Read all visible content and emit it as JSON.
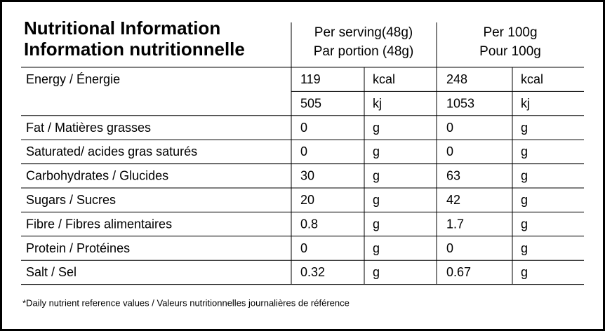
{
  "header": {
    "title": [
      "Nutritional Information",
      "Information nutritionnelle"
    ],
    "per_serving": [
      "Per serving(48g)",
      "Par portion (48g)"
    ],
    "per_100g": [
      "Per 100g",
      "Pour 100g"
    ]
  },
  "table": {
    "rows": [
      {
        "label": "Energy / Énergie",
        "lines": [
          [
            "119",
            "kcal",
            "248",
            "kcal"
          ],
          [
            "505",
            "kj",
            "1053",
            "kj"
          ]
        ]
      },
      {
        "label": "Fat / Matières grasses",
        "lines": [
          [
            "0",
            "g",
            "0",
            "g"
          ]
        ]
      },
      {
        "label": "Saturated/ acides gras saturés",
        "lines": [
          [
            "0",
            "g",
            "0",
            "g"
          ]
        ]
      },
      {
        "label": "Carbohydrates / Glucides",
        "lines": [
          [
            "30",
            "g",
            "63",
            "g"
          ]
        ]
      },
      {
        "label": "Sugars / Sucres",
        "lines": [
          [
            "20",
            "g",
            "42",
            "g"
          ]
        ]
      },
      {
        "label": "Fibre / Fibres alimentaires",
        "lines": [
          [
            "0.8",
            "g",
            "1.7",
            "g"
          ]
        ]
      },
      {
        "label": "Protein / Protéines",
        "lines": [
          [
            "0",
            "g",
            "0",
            "g"
          ]
        ]
      },
      {
        "label": "Salt / Sel",
        "lines": [
          [
            "0.32",
            "g",
            "0.67",
            "g"
          ]
        ]
      }
    ]
  },
  "footnote": "*Daily nutrient reference values / Valeurs nutritionnelles journalières de référence"
}
